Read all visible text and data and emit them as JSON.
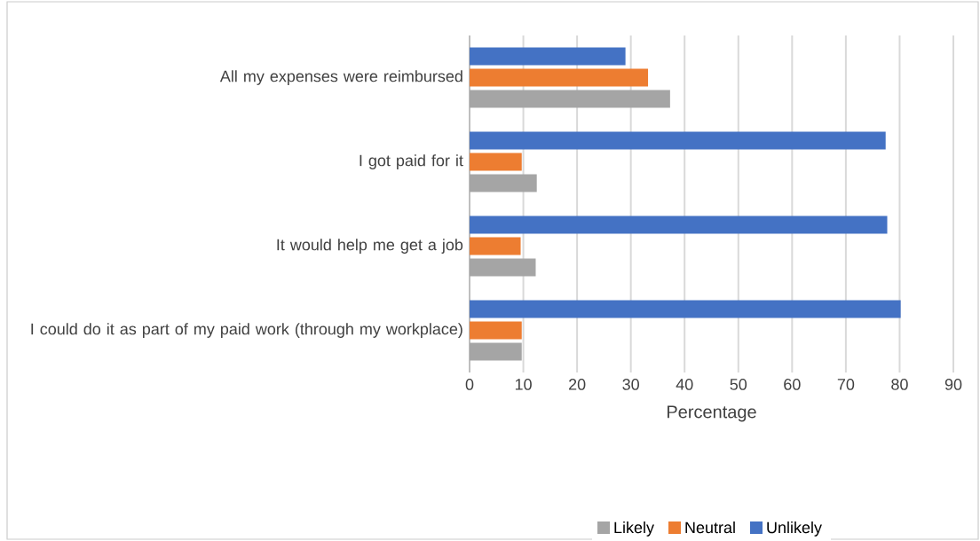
{
  "chart_data": {
    "type": "bar",
    "orientation": "horizontal",
    "xlabel": "Percentage",
    "categories": [
      "All my expenses were reimbursed",
      "I got paid for it",
      "It would help me get a job",
      "I could do it as part of my paid work (through my workplace)"
    ],
    "series": [
      {
        "name": "Likely",
        "color": "#a5a5a5",
        "values": [
          37.3,
          12.5,
          12.3,
          9.7
        ]
      },
      {
        "name": "Neutral",
        "color": "#ed7d31",
        "values": [
          33.2,
          9.7,
          9.5,
          9.7
        ]
      },
      {
        "name": "Unlikely",
        "color": "#4472c4",
        "values": [
          29.0,
          77.4,
          77.7,
          80.2
        ]
      }
    ],
    "xlim": [
      0,
      90
    ],
    "xticks": [
      0,
      10,
      20,
      30,
      40,
      50,
      60,
      70,
      80,
      90
    ],
    "grid": "x",
    "legend": "bottom"
  }
}
